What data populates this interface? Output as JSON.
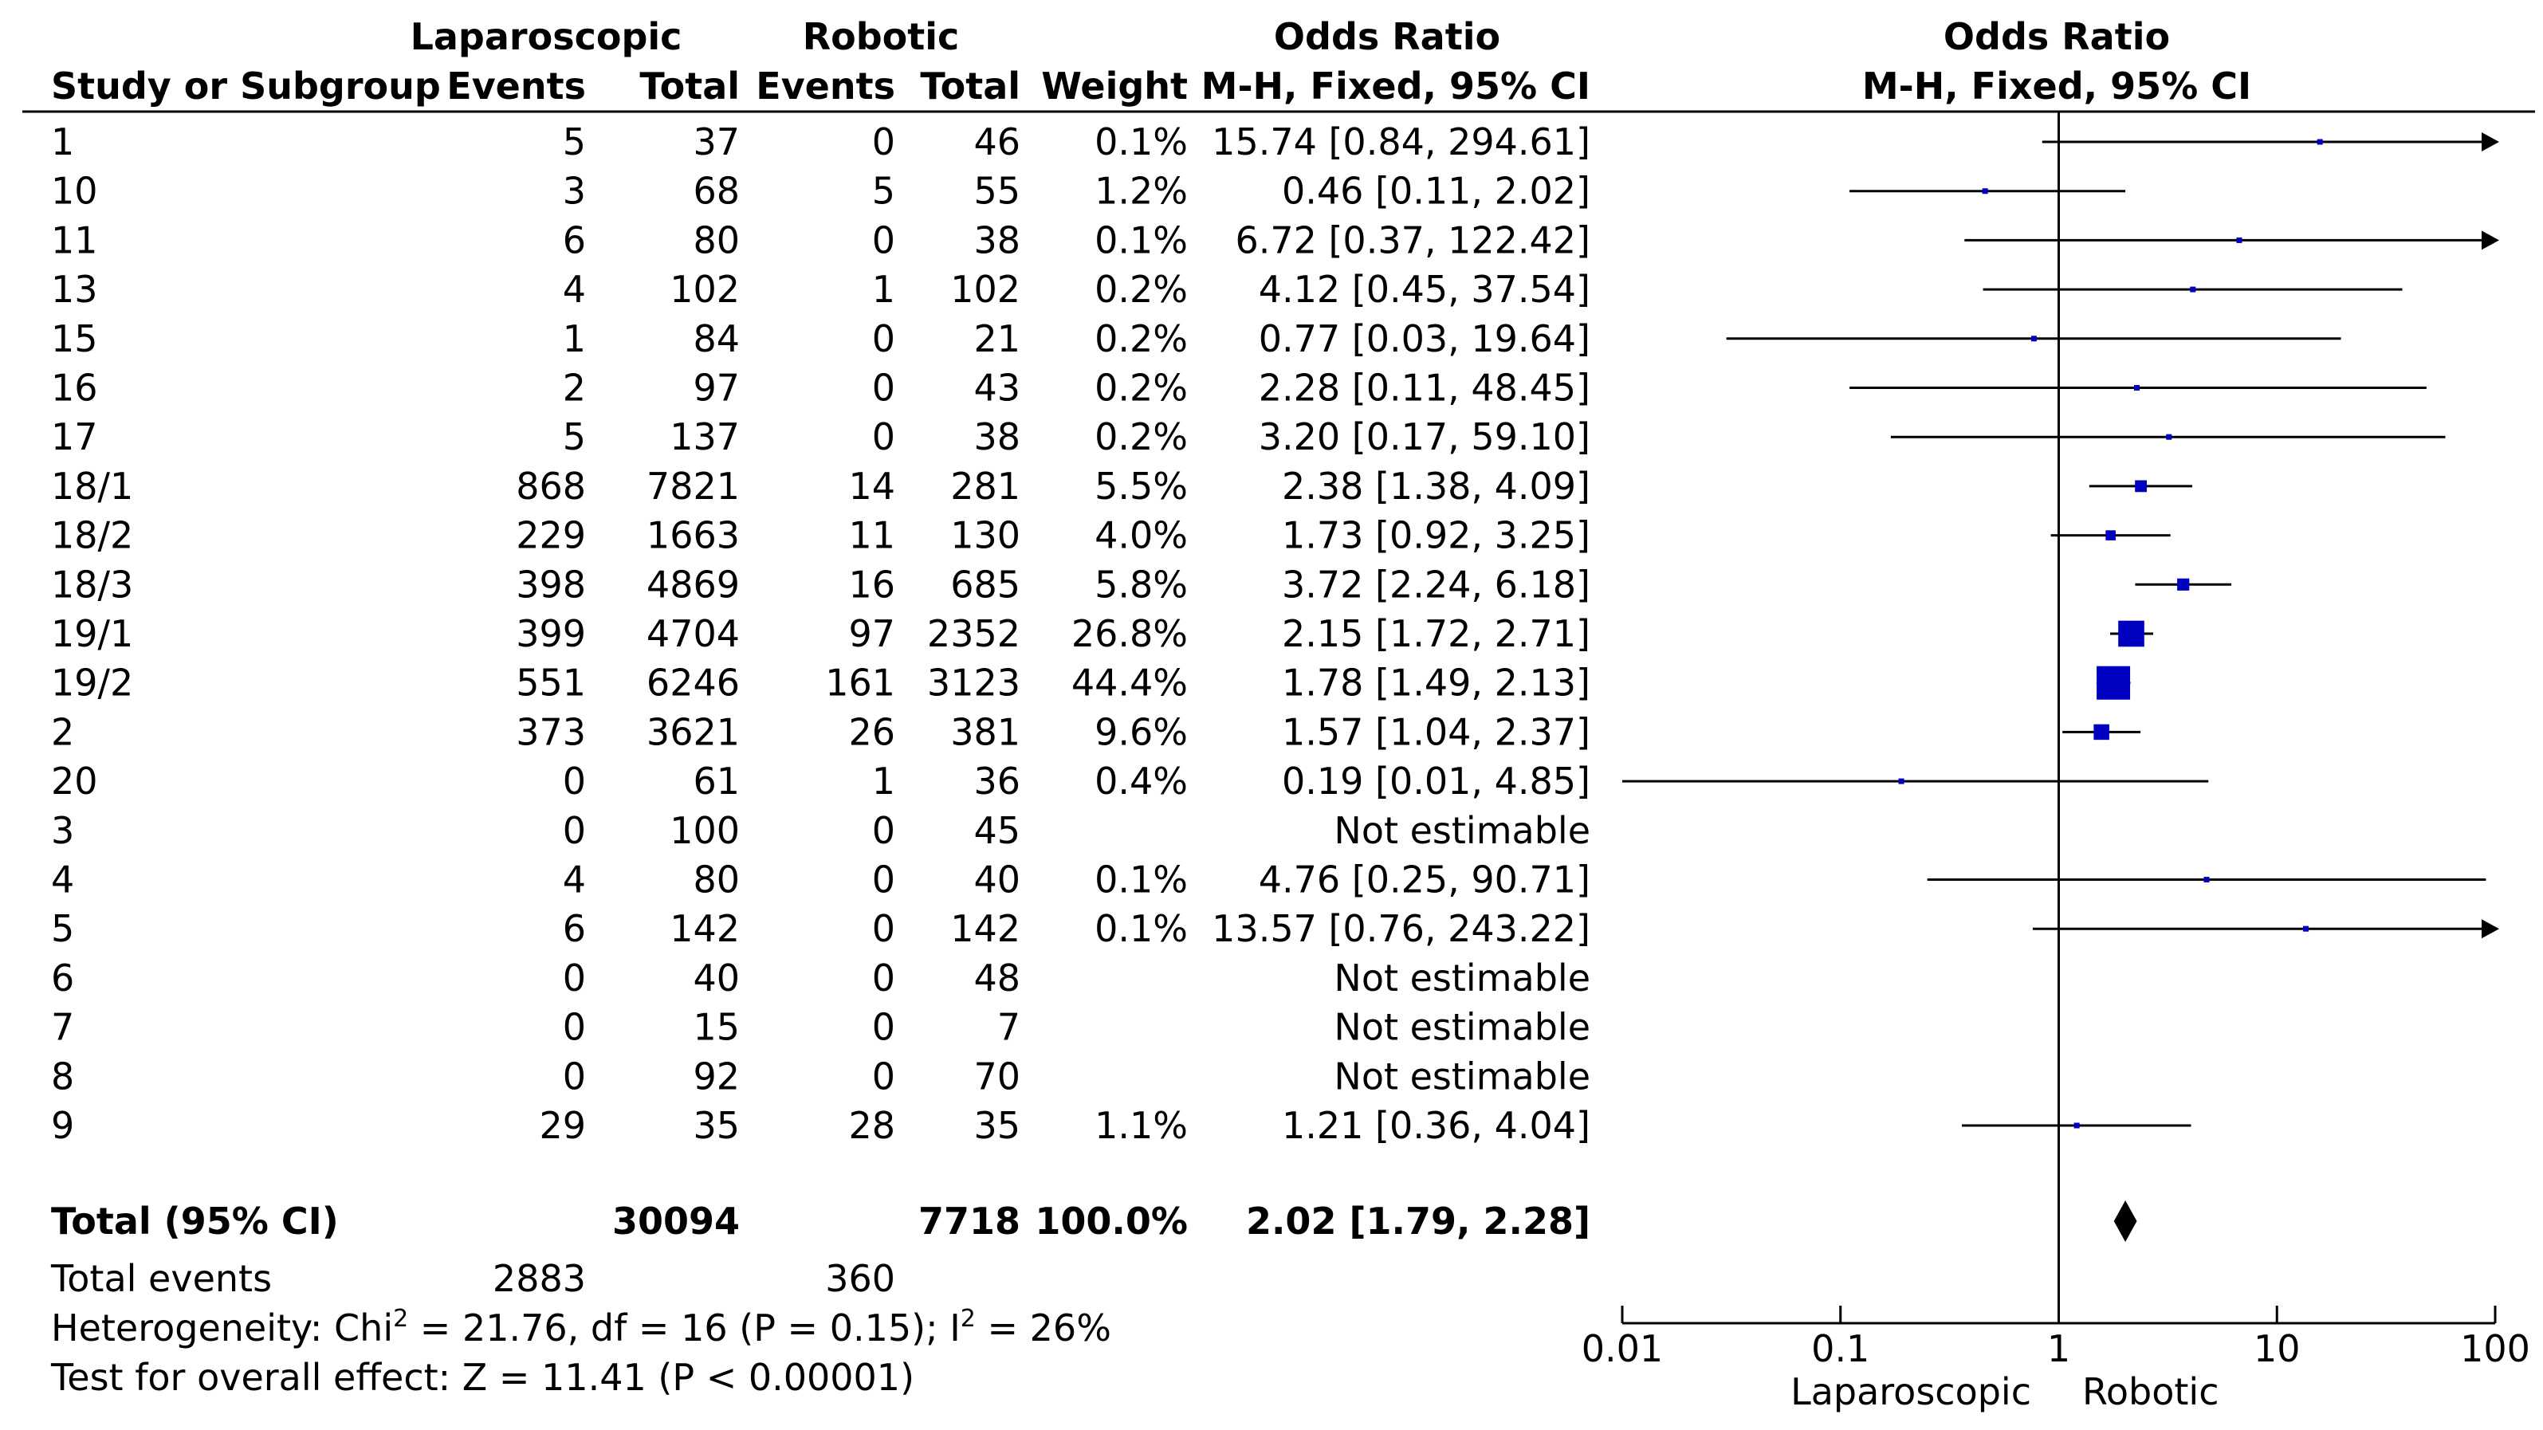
{
  "chart_data": {
    "type": "forest",
    "headers": {
      "group1": "Laparoscopic",
      "group2": "Robotic",
      "or_title": "Odds Ratio",
      "or_method": "M-H, Fixed, 95% CI",
      "plot_title": "Odds Ratio",
      "plot_method": "M-H, Fixed, 95% CI",
      "study": "Study or Subgroup",
      "events": "Events",
      "total": "Total",
      "weight": "Weight"
    },
    "studies": [
      {
        "study": "1",
        "lap_events": "5",
        "lap_total": "37",
        "rob_events": "0",
        "rob_total": "46",
        "weight": "0.1%",
        "ci_text": "15.74 [0.84, 294.61]",
        "or": 15.74,
        "lo": 0.84,
        "hi": 294.61,
        "w": 0.1
      },
      {
        "study": "10",
        "lap_events": "3",
        "lap_total": "68",
        "rob_events": "5",
        "rob_total": "55",
        "weight": "1.2%",
        "ci_text": "0.46 [0.11, 2.02]",
        "or": 0.46,
        "lo": 0.11,
        "hi": 2.02,
        "w": 1.2
      },
      {
        "study": "11",
        "lap_events": "6",
        "lap_total": "80",
        "rob_events": "0",
        "rob_total": "38",
        "weight": "0.1%",
        "ci_text": "6.72 [0.37, 122.42]",
        "or": 6.72,
        "lo": 0.37,
        "hi": 122.42,
        "w": 0.1
      },
      {
        "study": "13",
        "lap_events": "4",
        "lap_total": "102",
        "rob_events": "1",
        "rob_total": "102",
        "weight": "0.2%",
        "ci_text": "4.12 [0.45, 37.54]",
        "or": 4.12,
        "lo": 0.45,
        "hi": 37.54,
        "w": 0.2
      },
      {
        "study": "15",
        "lap_events": "1",
        "lap_total": "84",
        "rob_events": "0",
        "rob_total": "21",
        "weight": "0.2%",
        "ci_text": "0.77 [0.03, 19.64]",
        "or": 0.77,
        "lo": 0.03,
        "hi": 19.64,
        "w": 0.2
      },
      {
        "study": "16",
        "lap_events": "2",
        "lap_total": "97",
        "rob_events": "0",
        "rob_total": "43",
        "weight": "0.2%",
        "ci_text": "2.28 [0.11, 48.45]",
        "or": 2.28,
        "lo": 0.11,
        "hi": 48.45,
        "w": 0.2
      },
      {
        "study": "17",
        "lap_events": "5",
        "lap_total": "137",
        "rob_events": "0",
        "rob_total": "38",
        "weight": "0.2%",
        "ci_text": "3.20 [0.17, 59.10]",
        "or": 3.2,
        "lo": 0.17,
        "hi": 59.1,
        "w": 0.2
      },
      {
        "study": "18/1",
        "lap_events": "868",
        "lap_total": "7821",
        "rob_events": "14",
        "rob_total": "281",
        "weight": "5.5%",
        "ci_text": "2.38 [1.38, 4.09]",
        "or": 2.38,
        "lo": 1.38,
        "hi": 4.09,
        "w": 5.5
      },
      {
        "study": "18/2",
        "lap_events": "229",
        "lap_total": "1663",
        "rob_events": "11",
        "rob_total": "130",
        "weight": "4.0%",
        "ci_text": "1.73 [0.92, 3.25]",
        "or": 1.73,
        "lo": 0.92,
        "hi": 3.25,
        "w": 4.0
      },
      {
        "study": "18/3",
        "lap_events": "398",
        "lap_total": "4869",
        "rob_events": "16",
        "rob_total": "685",
        "weight": "5.8%",
        "ci_text": "3.72 [2.24, 6.18]",
        "or": 3.72,
        "lo": 2.24,
        "hi": 6.18,
        "w": 5.8
      },
      {
        "study": "19/1",
        "lap_events": "399",
        "lap_total": "4704",
        "rob_events": "97",
        "rob_total": "2352",
        "weight": "26.8%",
        "ci_text": "2.15 [1.72, 2.71]",
        "or": 2.15,
        "lo": 1.72,
        "hi": 2.71,
        "w": 26.8
      },
      {
        "study": "19/2",
        "lap_events": "551",
        "lap_total": "6246",
        "rob_events": "161",
        "rob_total": "3123",
        "weight": "44.4%",
        "ci_text": "1.78 [1.49, 2.13]",
        "or": 1.78,
        "lo": 1.49,
        "hi": 2.13,
        "w": 44.4
      },
      {
        "study": "2",
        "lap_events": "373",
        "lap_total": "3621",
        "rob_events": "26",
        "rob_total": "381",
        "weight": "9.6%",
        "ci_text": "1.57 [1.04, 2.37]",
        "or": 1.57,
        "lo": 1.04,
        "hi": 2.37,
        "w": 9.6
      },
      {
        "study": "20",
        "lap_events": "0",
        "lap_total": "61",
        "rob_events": "1",
        "rob_total": "36",
        "weight": "0.4%",
        "ci_text": "0.19 [0.01, 4.85]",
        "or": 0.19,
        "lo": 0.01,
        "hi": 4.85,
        "w": 0.4
      },
      {
        "study": "3",
        "lap_events": "0",
        "lap_total": "100",
        "rob_events": "0",
        "rob_total": "45",
        "weight": "",
        "ci_text": "Not estimable",
        "or": null,
        "lo": null,
        "hi": null,
        "w": null
      },
      {
        "study": "4",
        "lap_events": "4",
        "lap_total": "80",
        "rob_events": "0",
        "rob_total": "40",
        "weight": "0.1%",
        "ci_text": "4.76 [0.25, 90.71]",
        "or": 4.76,
        "lo": 0.25,
        "hi": 90.71,
        "w": 0.1
      },
      {
        "study": "5",
        "lap_events": "6",
        "lap_total": "142",
        "rob_events": "0",
        "rob_total": "142",
        "weight": "0.1%",
        "ci_text": "13.57 [0.76, 243.22]",
        "or": 13.57,
        "lo": 0.76,
        "hi": 243.22,
        "w": 0.1
      },
      {
        "study": "6",
        "lap_events": "0",
        "lap_total": "40",
        "rob_events": "0",
        "rob_total": "48",
        "weight": "",
        "ci_text": "Not estimable",
        "or": null,
        "lo": null,
        "hi": null,
        "w": null
      },
      {
        "study": "7",
        "lap_events": "0",
        "lap_total": "15",
        "rob_events": "0",
        "rob_total": "7",
        "weight": "",
        "ci_text": "Not estimable",
        "or": null,
        "lo": null,
        "hi": null,
        "w": null
      },
      {
        "study": "8",
        "lap_events": "0",
        "lap_total": "92",
        "rob_events": "0",
        "rob_total": "70",
        "weight": "",
        "ci_text": "Not estimable",
        "or": null,
        "lo": null,
        "hi": null,
        "w": null
      },
      {
        "study": "9",
        "lap_events": "29",
        "lap_total": "35",
        "rob_events": "28",
        "rob_total": "35",
        "weight": "1.1%",
        "ci_text": "1.21 [0.36, 4.04]",
        "or": 1.21,
        "lo": 0.36,
        "hi": 4.04,
        "w": 1.1
      }
    ],
    "total": {
      "label": "Total (95% CI)",
      "lap_total": "30094",
      "rob_total": "7718",
      "weight": "100.0%",
      "ci_text": "2.02 [1.79, 2.28]",
      "or": 2.02,
      "lo": 1.79,
      "hi": 2.28
    },
    "total_events": {
      "label": "Total events",
      "lap": "2883",
      "rob": "360"
    },
    "heterogeneity": {
      "prefix": "Heterogeneity: Chi",
      "sup1": "2",
      "middle": " = 21.76, df = 16 (P = 0.15); I",
      "sup2": "2",
      "suffix": " = 26%"
    },
    "overall_effect": "Test for overall effect: Z = 11.41 (P < 0.00001)",
    "x_axis": {
      "scale": "log",
      "range": [
        0.01,
        100
      ],
      "ticks": [
        0.01,
        0.1,
        1,
        10,
        100
      ],
      "tick_labels": [
        "0.01",
        "0.1",
        "1",
        "10",
        "100"
      ],
      "favours_left": "Laparoscopic",
      "favours_right": "Robotic"
    },
    "colors": {
      "marker": "#0000c0",
      "line": "#000000",
      "text": "#000000"
    }
  }
}
